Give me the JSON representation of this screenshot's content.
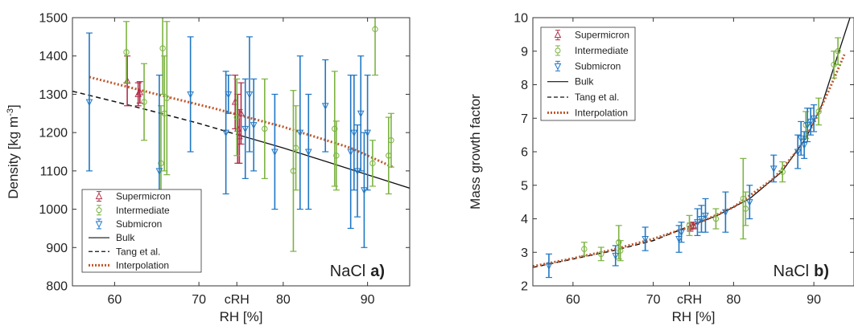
{
  "chart_data": [
    {
      "type": "scatter",
      "panel_label": "a)",
      "annotation": "NaCl",
      "xlabel": "RH [%]",
      "ylabel": "Density [kg m-3]",
      "ylabel_parts": {
        "main": "Density [kg m",
        "sup": "-3",
        "end": "]"
      },
      "xlim": [
        55,
        95
      ],
      "ylim": [
        800,
        1500
      ],
      "xticks": [
        60,
        70,
        80,
        90
      ],
      "xtick_labels": [
        "60",
        "70",
        "80",
        "90"
      ],
      "crh_tick": {
        "x": 74.5,
        "label": "cRH"
      },
      "yticks": [
        800,
        900,
        1000,
        1100,
        1200,
        1300,
        1400,
        1500
      ],
      "ytick_labels": [
        "800",
        "900",
        "1000",
        "1100",
        "1200",
        "1300",
        "1400",
        "1500"
      ],
      "legend_position": "bottom-left",
      "series": [
        {
          "name": "Supermicron",
          "kind": "errorbar",
          "marker": "triangle-up",
          "color": "#b0304a",
          "points": [
            [
              61.5,
              1335,
              65
            ],
            [
              63.0,
              1305,
              28
            ],
            [
              62.8,
              1300,
              30
            ],
            [
              74.3,
              1280,
              70
            ],
            [
              74.6,
              1210,
              90
            ],
            [
              75.0,
              1250,
              80
            ],
            [
              74.8,
              1190,
              70
            ]
          ]
        },
        {
          "name": "Intermediate",
          "kind": "errorbar",
          "marker": "circle",
          "color": "#7cb342",
          "points": [
            [
              61.4,
              1410,
              80
            ],
            [
              63.5,
              1280,
              100
            ],
            [
              65.7,
              1420,
              120
            ],
            [
              65.9,
              1250,
              150
            ],
            [
              66.2,
              1290,
              200
            ],
            [
              65.5,
              1120,
              150
            ],
            [
              74.5,
              1240,
              100
            ],
            [
              77.8,
              1210,
              130
            ],
            [
              81.2,
              1100,
              210
            ],
            [
              81.5,
              1160,
              110
            ],
            [
              86.1,
              1210,
              150
            ],
            [
              86.3,
              1140,
              90
            ],
            [
              90.6,
              1120,
              60
            ],
            [
              90.9,
              1470,
              120
            ],
            [
              92.5,
              1140,
              100
            ],
            [
              92.8,
              1180,
              70
            ]
          ]
        },
        {
          "name": "Submicron",
          "kind": "errorbar",
          "marker": "triangle-down",
          "color": "#1f77c4",
          "points": [
            [
              57.0,
              1280,
              180
            ],
            [
              65.3,
              1100,
              250
            ],
            [
              69.0,
              1300,
              150
            ],
            [
              73.2,
              1200,
              160
            ],
            [
              73.5,
              1300,
              50
            ],
            [
              75.5,
              1210,
              130
            ],
            [
              76.0,
              1300,
              150
            ],
            [
              76.5,
              1220,
              120
            ],
            [
              79.0,
              1150,
              150
            ],
            [
              82.0,
              1200,
              200
            ],
            [
              83.0,
              1150,
              150
            ],
            [
              85.0,
              1270,
              120
            ],
            [
              88.0,
              1150,
              200
            ],
            [
              88.4,
              1200,
              150
            ],
            [
              88.8,
              1100,
              120
            ],
            [
              89.2,
              1250,
              150
            ],
            [
              89.6,
              1050,
              150
            ],
            [
              90.0,
              1200,
              150
            ]
          ]
        },
        {
          "name": "Bulk",
          "kind": "line",
          "style": "solid",
          "color": "#111111",
          "x": [
            74.5,
            80,
            85,
            90,
            95
          ],
          "y": [
            1195,
            1160,
            1125,
            1090,
            1055
          ]
        },
        {
          "name": "Tang et al.",
          "kind": "line",
          "style": "dashed",
          "color": "#111111",
          "x": [
            55,
            60,
            65,
            70,
            74.5
          ],
          "y": [
            1308,
            1281,
            1253,
            1224,
            1195
          ]
        },
        {
          "name": "Interpolation",
          "kind": "line",
          "style": "dotted",
          "color": "#c0562a",
          "x": [
            57,
            65,
            72,
            80,
            88,
            93
          ],
          "y": [
            1345,
            1300,
            1262,
            1215,
            1160,
            1110
          ]
        }
      ]
    },
    {
      "type": "scatter",
      "panel_label": "b)",
      "annotation": "NaCl",
      "xlabel": "RH [%]",
      "ylabel": "Mass growth factor",
      "xlim": [
        55,
        95
      ],
      "ylim": [
        2,
        10
      ],
      "xticks": [
        60,
        70,
        80,
        90
      ],
      "xtick_labels": [
        "60",
        "70",
        "80",
        "90"
      ],
      "crh_tick": {
        "x": 74.5,
        "label": "cRH"
      },
      "yticks": [
        2,
        3,
        4,
        5,
        6,
        7,
        8,
        9,
        10
      ],
      "ytick_labels": [
        "2",
        "3",
        "4",
        "5",
        "6",
        "7",
        "8",
        "9",
        "10"
      ],
      "legend_position": "top-left",
      "series": [
        {
          "name": "Supermicron",
          "kind": "errorbar",
          "marker": "triangle-up",
          "color": "#b0304a",
          "points": [
            [
              74.6,
              3.75,
              0.12
            ],
            [
              75.0,
              3.8,
              0.1
            ]
          ]
        },
        {
          "name": "Intermediate",
          "kind": "errorbar",
          "marker": "circle",
          "color": "#7cb342",
          "points": [
            [
              61.4,
              3.1,
              0.2
            ],
            [
              63.5,
              2.95,
              0.2
            ],
            [
              65.7,
              3.3,
              0.5
            ],
            [
              65.9,
              3.05,
              0.3
            ],
            [
              74.5,
              3.8,
              0.3
            ],
            [
              77.8,
              4.0,
              0.3
            ],
            [
              81.2,
              4.6,
              1.2
            ],
            [
              81.5,
              4.3,
              0.5
            ],
            [
              86.1,
              5.4,
              0.3
            ],
            [
              89.0,
              6.8,
              0.4
            ],
            [
              90.6,
              7.2,
              0.4
            ],
            [
              92.5,
              8.6,
              0.4
            ],
            [
              93.0,
              9.0,
              0.4
            ]
          ]
        },
        {
          "name": "Submicron",
          "kind": "errorbar",
          "marker": "triangle-down",
          "color": "#1f77c4",
          "points": [
            [
              57.0,
              2.6,
              0.35
            ],
            [
              65.3,
              2.9,
              0.3
            ],
            [
              69.0,
              3.4,
              0.35
            ],
            [
              73.2,
              3.4,
              0.4
            ],
            [
              73.5,
              3.6,
              0.3
            ],
            [
              75.5,
              3.9,
              0.4
            ],
            [
              76.0,
              4.0,
              0.4
            ],
            [
              76.5,
              4.1,
              0.5
            ],
            [
              79.0,
              4.2,
              0.6
            ],
            [
              82.0,
              4.5,
              0.5
            ],
            [
              85.0,
              5.5,
              0.4
            ],
            [
              88.0,
              6.0,
              0.5
            ],
            [
              88.4,
              6.4,
              0.5
            ],
            [
              88.8,
              6.2,
              0.4
            ],
            [
              89.2,
              6.8,
              0.5
            ],
            [
              89.6,
              6.9,
              0.4
            ],
            [
              90.0,
              7.0,
              0.4
            ]
          ]
        },
        {
          "name": "Bulk",
          "kind": "line",
          "style": "solid",
          "color": "#111111",
          "x": [
            74.5,
            78,
            82,
            86,
            89,
            91,
            93,
            94.5
          ],
          "y": [
            3.78,
            4.1,
            4.6,
            5.4,
            6.4,
            7.4,
            8.9,
            10.0
          ]
        },
        {
          "name": "Tang et al.",
          "kind": "line",
          "style": "dashed",
          "color": "#111111",
          "x": [
            55,
            60,
            65,
            70,
            74.5
          ],
          "y": [
            2.55,
            2.8,
            3.05,
            3.35,
            3.78
          ]
        },
        {
          "name": "Interpolation",
          "kind": "line",
          "style": "dotted",
          "color": "#c0562a",
          "x": [
            55,
            60,
            65,
            70,
            75,
            80,
            85,
            88,
            90,
            92,
            93.8
          ],
          "y": [
            2.58,
            2.82,
            3.08,
            3.4,
            3.8,
            4.35,
            5.2,
            6.05,
            6.85,
            7.9,
            8.9
          ]
        }
      ]
    }
  ]
}
